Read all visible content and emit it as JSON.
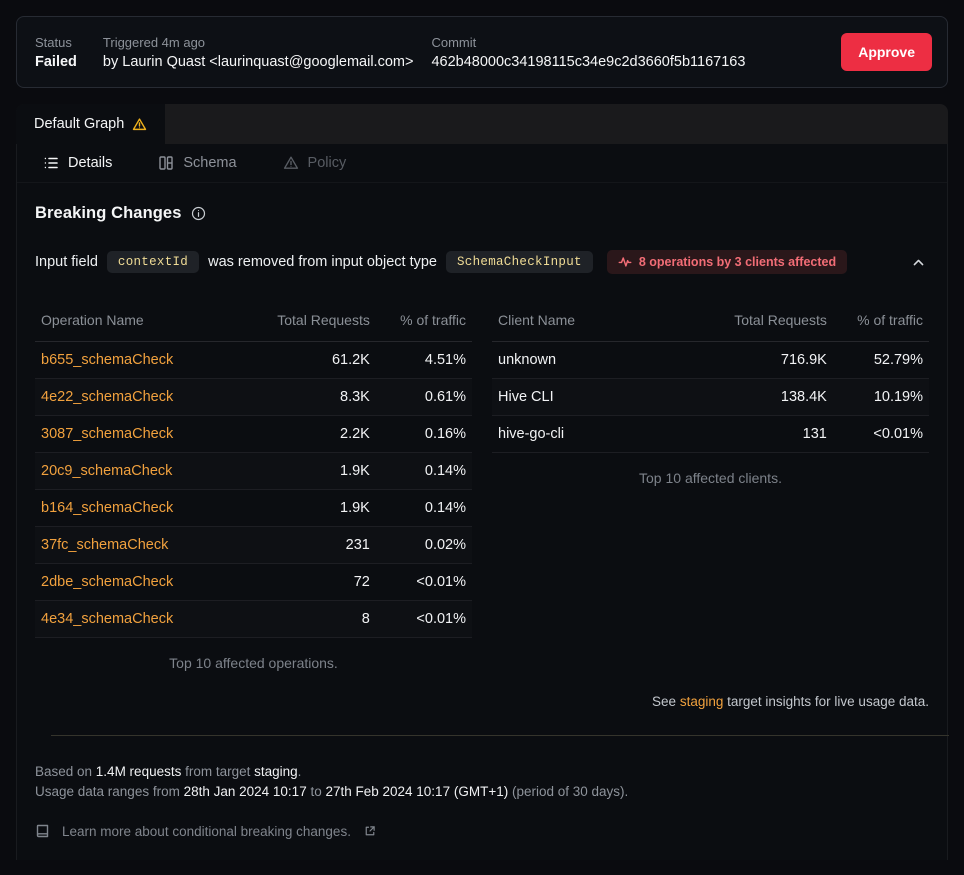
{
  "colors": {
    "accent_orange": "#f1a13e",
    "danger_red": "#ed2e43",
    "warning_yellow": "#efb11d",
    "badge_red_text": "#f26d76",
    "badge_red_bg": "#2a171a",
    "chip_yellow_text": "#f0dc96",
    "panel_bg": "#0b0d11"
  },
  "header": {
    "status_label": "Status",
    "status_value": "Failed",
    "triggered_label": "Triggered 4m ago",
    "triggered_by": "by Laurin Quast <laurinquast@googlemail.com>",
    "commit_label": "Commit",
    "commit_value": "462b48000c34198115c34e9c2d3660f5b1167163",
    "approve_label": "Approve"
  },
  "graph_tab": {
    "label": "Default Graph"
  },
  "tabs": [
    {
      "label": "Details",
      "state": "active",
      "icon": "list-icon"
    },
    {
      "label": "Schema",
      "state": "default",
      "icon": "schema-icon"
    },
    {
      "label": "Policy",
      "state": "muted",
      "icon": "warning-icon"
    }
  ],
  "section": {
    "title": "Breaking Changes",
    "change": {
      "prefix": "Input field",
      "field_code": "contextId",
      "middle": "was removed from input object type",
      "type_code": "SchemaCheckInput",
      "badge": "8 operations by 3 clients affected"
    }
  },
  "tables": {
    "operations": {
      "headers": [
        "Operation Name",
        "Total Requests",
        "% of traffic"
      ],
      "rows": [
        {
          "name": "b655_schemaCheck",
          "requests": "61.2K",
          "traffic": "4.51%"
        },
        {
          "name": "4e22_schemaCheck",
          "requests": "8.3K",
          "traffic": "0.61%"
        },
        {
          "name": "3087_schemaCheck",
          "requests": "2.2K",
          "traffic": "0.16%"
        },
        {
          "name": "20c9_schemaCheck",
          "requests": "1.9K",
          "traffic": "0.14%"
        },
        {
          "name": "b164_schemaCheck",
          "requests": "1.9K",
          "traffic": "0.14%"
        },
        {
          "name": "37fc_schemaCheck",
          "requests": "231",
          "traffic": "0.02%"
        },
        {
          "name": "2dbe_schemaCheck",
          "requests": "72",
          "traffic": "<0.01%"
        },
        {
          "name": "4e34_schemaCheck",
          "requests": "8",
          "traffic": "<0.01%"
        }
      ],
      "caption": "Top 10 affected operations."
    },
    "clients": {
      "headers": [
        "Client Name",
        "Total Requests",
        "% of traffic"
      ],
      "rows": [
        {
          "name": "unknown",
          "requests": "716.9K",
          "traffic": "52.79%"
        },
        {
          "name": "Hive CLI",
          "requests": "138.4K",
          "traffic": "10.19%"
        },
        {
          "name": "hive-go-cli",
          "requests": "131",
          "traffic": "<0.01%"
        }
      ],
      "caption": "Top 10 affected clients."
    }
  },
  "insights_note": {
    "prefix": "See ",
    "link": "staging",
    "suffix": " target insights for live usage data."
  },
  "footer": {
    "line1": [
      {
        "t": "Based on ",
        "s": false
      },
      {
        "t": "1.4M requests",
        "s": true
      },
      {
        "t": " from target ",
        "s": false
      },
      {
        "t": "staging",
        "s": true
      },
      {
        "t": ".",
        "s": false
      }
    ],
    "line2": [
      {
        "t": "Usage data ranges from ",
        "s": false
      },
      {
        "t": "28th Jan 2024 10:17",
        "s": true
      },
      {
        "t": " to ",
        "s": false
      },
      {
        "t": "27th Feb 2024 10:17 (GMT+1)",
        "s": true
      },
      {
        "t": " (period of 30 days).",
        "s": false
      }
    ],
    "learn_more": "Learn more about conditional breaking changes."
  }
}
